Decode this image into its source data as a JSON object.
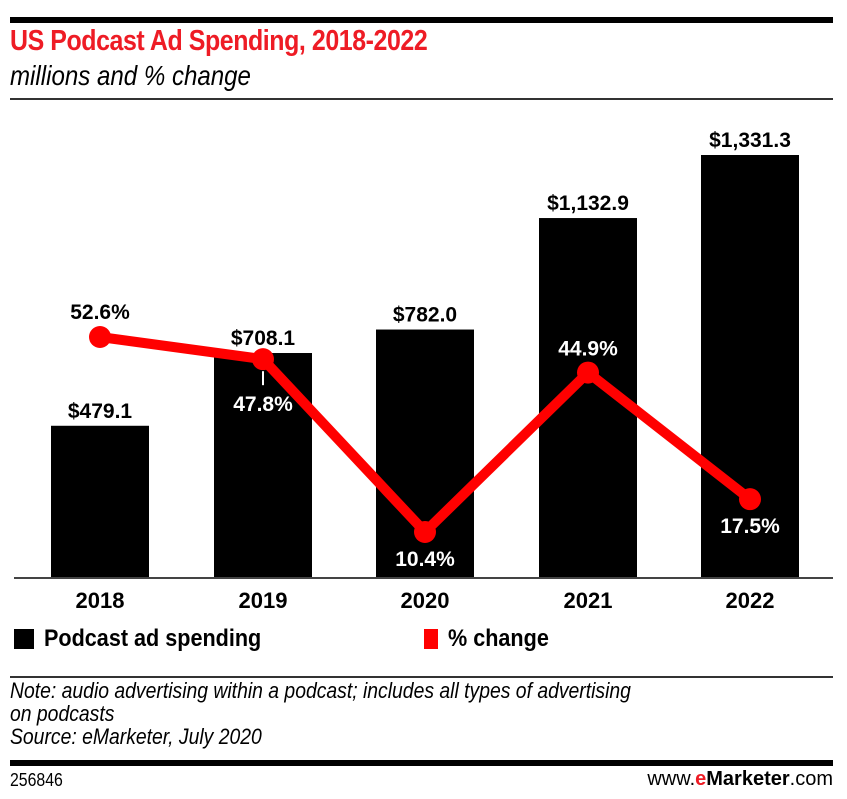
{
  "header": {
    "title": "US Podcast Ad Spending, 2018-2022",
    "subtitle": "millions and % change"
  },
  "colors": {
    "title": "#ee1c25",
    "bars": "#000000",
    "line": "#ff0000"
  },
  "chart_data": {
    "type": "bar",
    "title": "US Podcast Ad Spending, 2018-2022",
    "subtitle": "millions and % change",
    "categories": [
      "2018",
      "2019",
      "2020",
      "2021",
      "2022"
    ],
    "series": [
      {
        "name": "Podcast ad spending",
        "type": "bar",
        "values": [
          479.1,
          708.1,
          782.0,
          1132.9,
          1331.3
        ],
        "labels": [
          "$479.1",
          "$708.1",
          "$782.0",
          "$1,132.9",
          "$1,331.3"
        ]
      },
      {
        "name": "% change",
        "type": "line",
        "values": [
          52.6,
          47.8,
          10.4,
          44.9,
          17.5
        ],
        "labels": [
          "52.6%",
          "47.8%",
          "10.4%",
          "44.9%",
          "17.5%"
        ]
      }
    ],
    "xlabel": "",
    "ylabel": "",
    "ylim": [
      0,
      1331.3
    ],
    "grid": false,
    "legend_position": "bottom-left"
  },
  "legend": {
    "items": [
      {
        "label": "Podcast ad spending"
      },
      {
        "label": "% change"
      }
    ]
  },
  "footer": {
    "note_line1": "Note: audio advertising within a podcast; includes all types of advertising",
    "note_line2": "on podcasts",
    "source": "Source: eMarketer, July 2020",
    "chart_id": "256846",
    "brand_prefix": "www.",
    "brand_e": "e",
    "brand_name": "Marketer",
    "brand_suffix": ".com"
  }
}
